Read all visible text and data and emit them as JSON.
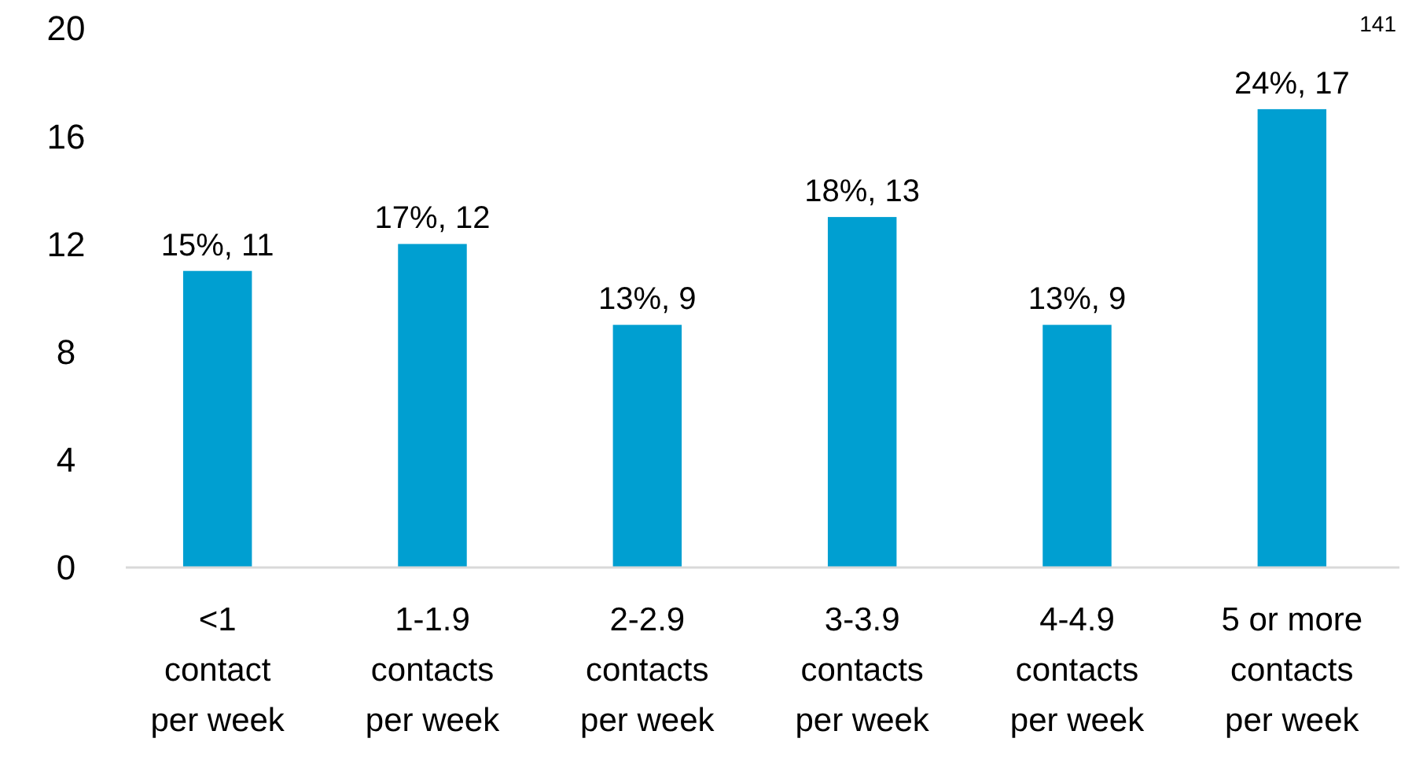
{
  "chart_data": {
    "type": "bar",
    "categories": [
      "<1 contact per week",
      "1-1.9 contacts per week",
      "2-2.9 contacts per week",
      "3-3.9 contacts per week",
      "4-4.9 contacts per week",
      "5 or more contacts per week"
    ],
    "values": [
      11,
      12,
      9,
      13,
      9,
      17
    ],
    "value_labels": [
      "15%, 11",
      "17%, 12",
      "13%, 9",
      "18%, 13",
      "13%, 9",
      "24%, 17"
    ],
    "color": "#009fd1",
    "ylim": [
      0,
      20
    ],
    "yticks": [
      0,
      4,
      8,
      12,
      16,
      20
    ],
    "grid": false,
    "annotations": [
      "141"
    ]
  }
}
